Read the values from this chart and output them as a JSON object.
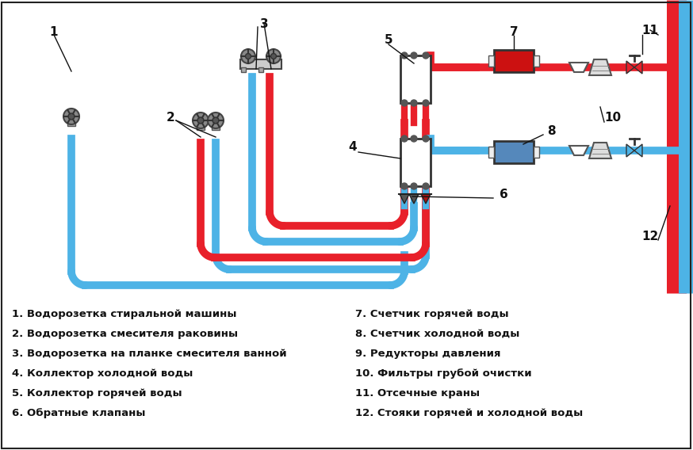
{
  "bg_color": "#ffffff",
  "hot_color": "#e8202a",
  "cold_color": "#4db3e6",
  "gray": "#888888",
  "dark_gray": "#555555",
  "light_gray": "#cccccc",
  "ann_color": "#111111",
  "legend_items_left": [
    "1. Водорозетка стиральной машины",
    "2. Водорозетка смесителя раковины",
    "3. Водорозетка на планке смесителя ванной",
    "4. Коллектор холодной воды",
    "5. Коллектор горячей воды",
    "6. Обратные клапаны"
  ],
  "legend_items_right": [
    "7. Счетчик горячей воды",
    "8. Счетчик холодной воды",
    "9. Редукторы давления",
    "10. Фильтры грубой очистки",
    "11. Отсечные краны",
    "12. Стояки горячей и холодной воды"
  ],
  "fig_width": 8.74,
  "fig_height": 5.68,
  "dpi": 100
}
